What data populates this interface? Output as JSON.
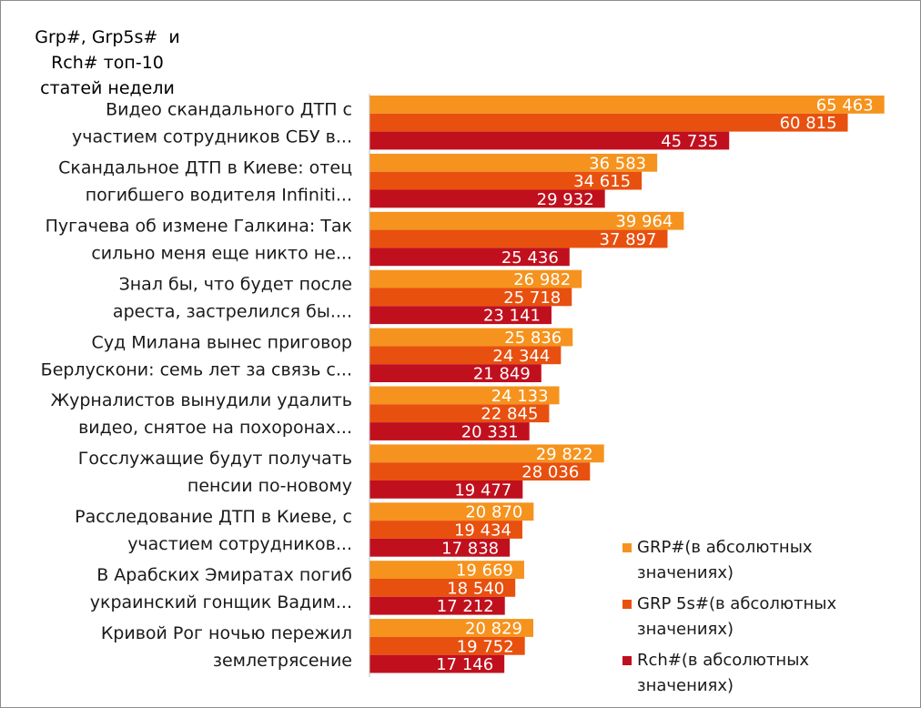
{
  "chart_data": {
    "type": "bar",
    "orientation": "horizontal",
    "title_lines": [
      "Grp#, Grp5s#  и",
      "Rch# топ-10",
      "статей недели"
    ],
    "categories": [
      [
        "Видео скандального ДТП с",
        "участием сотрудников СБУ в..."
      ],
      [
        "Скандальное ДТП в Киеве: отец",
        "погибшего водителя Infiniti..."
      ],
      [
        "Пугачева об измене Галкина: Так",
        "сильно меня еще никто не..."
      ],
      [
        "Знал бы, что будет после",
        "ареста, застрелился бы...."
      ],
      [
        "Суд Милана вынес приговор",
        "Берлускони: семь лет за связь с..."
      ],
      [
        "Журналистов вынудили удалить",
        "видео, снятое на похоронах..."
      ],
      [
        "Госслужащие будут получать",
        "пенсии по-новому"
      ],
      [
        "Расследование ДТП в Киеве, с",
        "участием сотрудников..."
      ],
      [
        "В Арабских Эмиратах погиб",
        "украинский гонщик Вадим..."
      ],
      [
        "Кривой Рог ночью пережил",
        "землетрясение"
      ]
    ],
    "series": [
      {
        "name_lines": [
          "GRP#(в абсолютных",
          "значениях)"
        ],
        "color": "#f5931e",
        "values": [
          65463,
          36583,
          39964,
          26982,
          25836,
          24133,
          29822,
          20870,
          19669,
          20829
        ],
        "labels": [
          "65 463",
          "36 583",
          "39 964",
          "26 982",
          "25 836",
          "24 133",
          "29 822",
          "20 870",
          "19 669",
          "20 829"
        ]
      },
      {
        "name_lines": [
          "GRP 5s#(в абсолютных",
          "значениях)"
        ],
        "color": "#e8500f",
        "values": [
          60815,
          34615,
          37897,
          25718,
          24344,
          22845,
          28036,
          19434,
          18540,
          19752
        ],
        "labels": [
          "60 815",
          "34 615",
          "37 897",
          "25 718",
          "24 344",
          "22 845",
          "28 036",
          "19 434",
          "18 540",
          "19 752"
        ]
      },
      {
        "name_lines": [
          "Rch#(в абсолютных",
          "значениях)"
        ],
        "color": "#c0101e",
        "values": [
          45735,
          29932,
          25436,
          23141,
          21849,
          20331,
          19477,
          17838,
          17212,
          17146
        ],
        "labels": [
          "45 735",
          "29 932",
          "25 436",
          "23 141",
          "21 849",
          "20 331",
          "19 477",
          "17 838",
          "17 212",
          "17 146"
        ]
      }
    ],
    "xlim": [
      0,
      67000
    ],
    "grid": false,
    "legend_position": "bottom-right"
  }
}
